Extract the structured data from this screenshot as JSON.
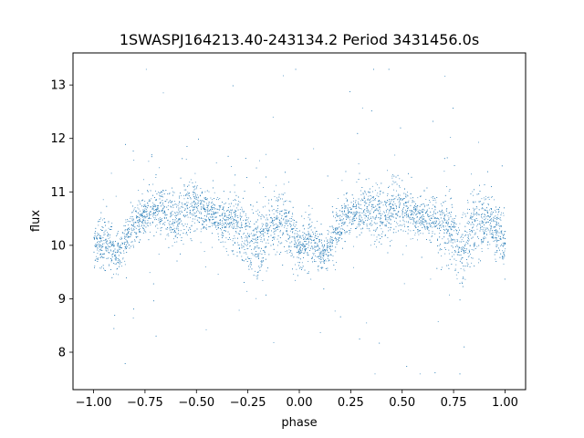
{
  "chart_data": {
    "type": "scatter",
    "title": "1SWASPJ164213.40-243134.2 Period 3431456.0s",
    "xlabel": "phase",
    "ylabel": "flux",
    "xlim": [
      -1.1,
      1.1
    ],
    "ylim": [
      7.3,
      13.6
    ],
    "xticks": [
      -1.0,
      -0.75,
      -0.5,
      -0.25,
      0.0,
      0.25,
      0.5,
      0.75,
      1.0
    ],
    "xtick_labels": [
      "−1.00",
      "−0.75",
      "−0.50",
      "−0.25",
      "0.00",
      "0.25",
      "0.50",
      "0.75",
      "1.00"
    ],
    "yticks": [
      8,
      9,
      10,
      11,
      12,
      13
    ],
    "ytick_labels": [
      "8",
      "9",
      "10",
      "11",
      "12",
      "13"
    ],
    "grid": false,
    "legend": "none",
    "marker_color": "#1f77b4",
    "series": [
      {
        "x_range": [
          -1.0,
          1.0
        ],
        "phase_profile": [
          {
            "phase": 0.0,
            "flux": 10.0,
            "spread": 0.35
          },
          {
            "phase": 0.05,
            "flux": 10.1,
            "spread": 0.4
          },
          {
            "phase": 0.12,
            "flux": 9.8,
            "spread": 0.3
          },
          {
            "phase": 0.18,
            "flux": 10.3,
            "spread": 0.35
          },
          {
            "phase": 0.25,
            "flux": 10.6,
            "spread": 0.3
          },
          {
            "phase": 0.33,
            "flux": 10.7,
            "spread": 0.4
          },
          {
            "phase": 0.4,
            "flux": 10.5,
            "spread": 0.45
          },
          {
            "phase": 0.47,
            "flux": 10.8,
            "spread": 0.4
          },
          {
            "phase": 0.55,
            "flux": 10.6,
            "spread": 0.3
          },
          {
            "phase": 0.62,
            "flux": 10.5,
            "spread": 0.35
          },
          {
            "phase": 0.7,
            "flux": 10.4,
            "spread": 0.5
          },
          {
            "phase": 0.78,
            "flux": 10.0,
            "spread": 0.55
          },
          {
            "phase": 0.85,
            "flux": 10.3,
            "spread": 0.5
          },
          {
            "phase": 0.92,
            "flux": 10.5,
            "spread": 0.45
          },
          {
            "phase": 1.0,
            "flux": 10.0,
            "spread": 0.35
          }
        ],
        "approx_points": 6000,
        "flux_min": 7.6,
        "flux_max": 13.3
      }
    ]
  }
}
